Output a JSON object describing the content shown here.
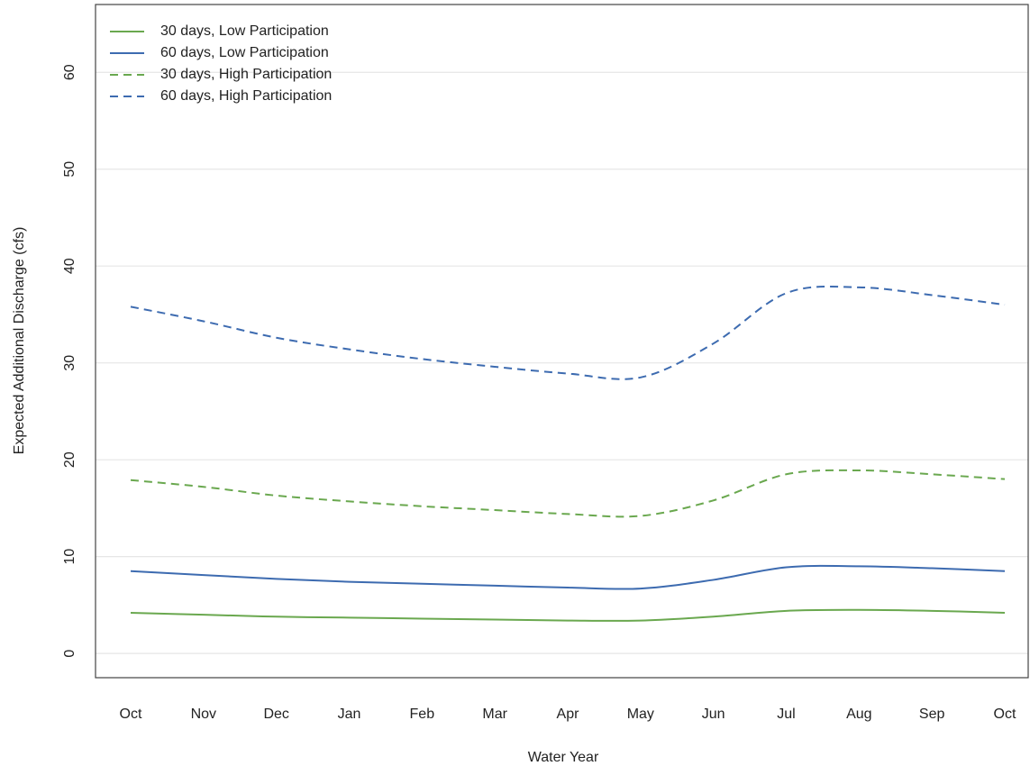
{
  "chart_data": {
    "type": "line",
    "title": "",
    "xlabel": "Water Year",
    "ylabel": "Expected Additional Discharge (cfs)",
    "categories": [
      "Oct",
      "Nov",
      "Dec",
      "Jan",
      "Feb",
      "Mar",
      "Apr",
      "May",
      "Jun",
      "Jul",
      "Aug",
      "Sep",
      "Oct"
    ],
    "ylim": [
      -2.5,
      67
    ],
    "yticks": [
      "0",
      "10",
      "20",
      "30",
      "40",
      "50",
      "60"
    ],
    "grid": "horizontal",
    "legend_position": "top-left",
    "series": [
      {
        "name": "30 days, Low Participation",
        "color": "#6aa84f",
        "dash": "solid",
        "values": [
          4.2,
          4.0,
          3.8,
          3.7,
          3.6,
          3.5,
          3.4,
          3.4,
          3.8,
          4.4,
          4.5,
          4.4,
          4.2
        ]
      },
      {
        "name": "60 days, Low Participation",
        "color": "#3d6bb0",
        "dash": "solid",
        "values": [
          8.5,
          8.1,
          7.7,
          7.4,
          7.2,
          7.0,
          6.8,
          6.7,
          7.6,
          8.9,
          9.0,
          8.8,
          8.5
        ]
      },
      {
        "name": "30 days, High Participation",
        "color": "#6aa84f",
        "dash": "dashed",
        "values": [
          17.9,
          17.2,
          16.3,
          15.7,
          15.2,
          14.8,
          14.4,
          14.2,
          15.8,
          18.5,
          18.9,
          18.5,
          18.0
        ]
      },
      {
        "name": "60 days, High Participation",
        "color": "#3d6bb0",
        "dash": "dashed",
        "values": [
          35.8,
          34.3,
          32.6,
          31.4,
          30.4,
          29.6,
          28.9,
          28.5,
          32.0,
          37.2,
          37.8,
          37.0,
          36.0
        ]
      }
    ]
  }
}
